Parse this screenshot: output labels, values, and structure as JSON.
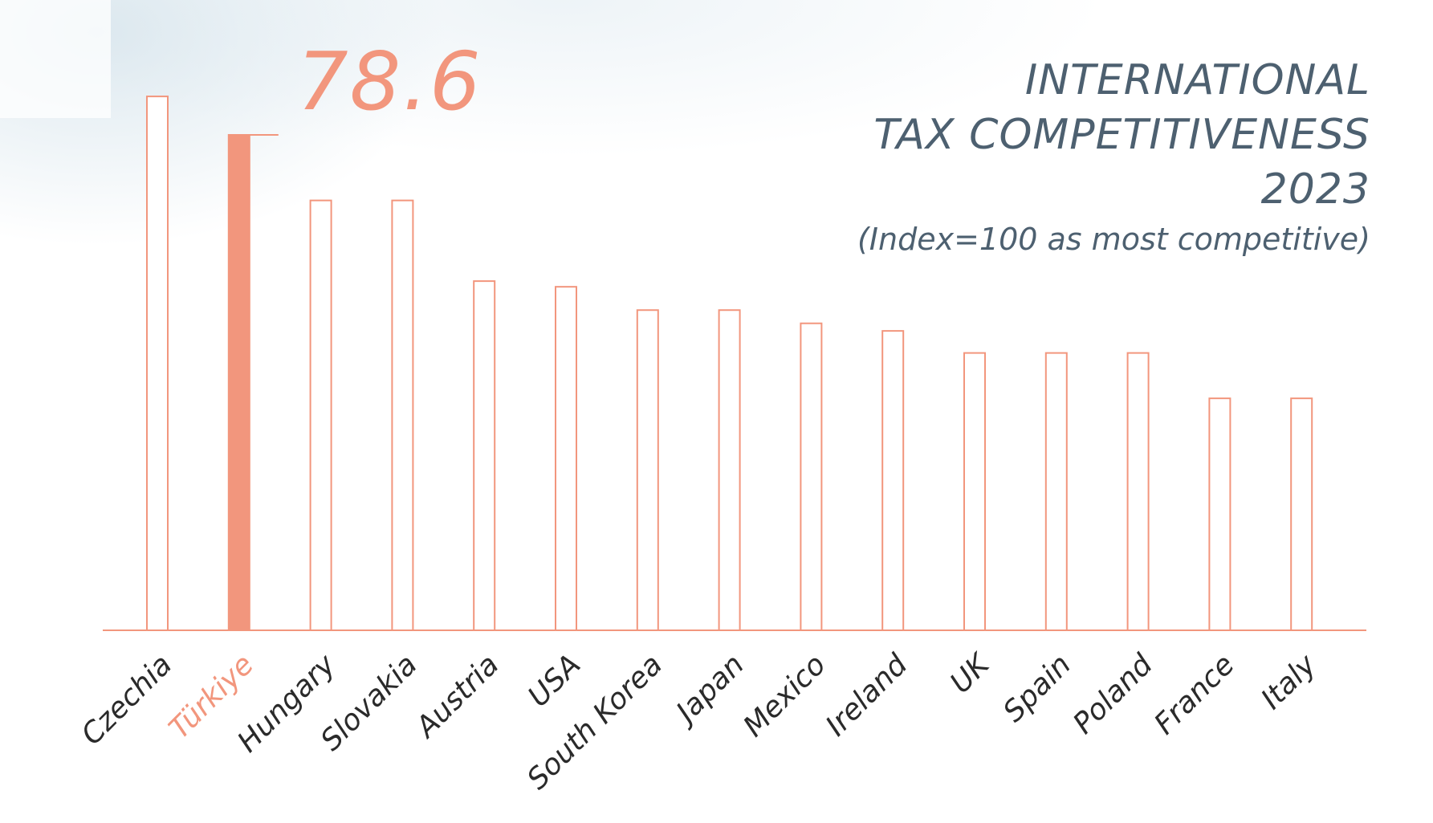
{
  "header": {
    "title_lines": [
      "INTERNATIONAL",
      "TAX COMPETITIVENESS",
      "2023"
    ],
    "subtitle": "(Index=100 as most competitive)"
  },
  "callout": {
    "value_text": "78.6"
  },
  "colors": {
    "bar_outline": "#f2967d",
    "highlight": "#f2967d",
    "title_text": "#4d6070",
    "label_text": "#2a2a2a"
  },
  "chart_data": {
    "type": "bar",
    "title": "INTERNATIONAL TAX COMPETITIVENESS 2023",
    "subtitle": "(Index=100 as most competitive)",
    "categories": [
      "Czechia",
      "Türkiye",
      "Hungary",
      "Slovakia",
      "Austria",
      "USA",
      "South Korea",
      "Japan",
      "Mexico",
      "Ireland",
      "UK",
      "Spain",
      "Poland",
      "France",
      "Italy"
    ],
    "values": [
      84.7,
      78.6,
      68.2,
      68.2,
      55.4,
      54.5,
      50.8,
      50.8,
      48.7,
      47.5,
      44.0,
      44.0,
      44.0,
      36.8,
      36.8
    ],
    "highlight_category": "Türkiye",
    "ylim": [
      0,
      100
    ],
    "grid": false,
    "legend": "none",
    "xlabel": "",
    "ylabel": ""
  }
}
